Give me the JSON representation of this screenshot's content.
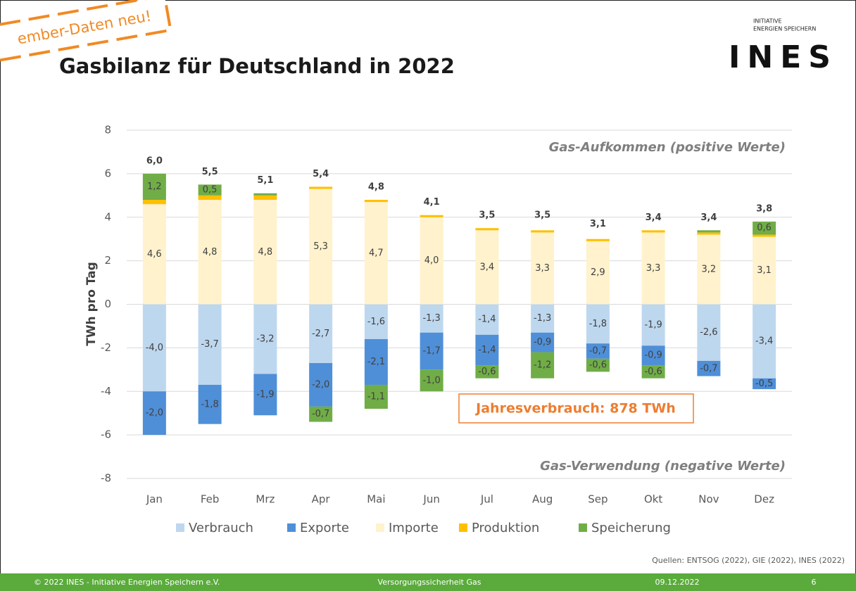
{
  "banner": "ember-Daten neu!",
  "logo": {
    "line1": "INITIATIVE",
    "line2": "ENERGIEN SPEICHERN",
    "name": "INES"
  },
  "chart_data": {
    "type": "bar",
    "stacked": true,
    "title": "Gasbilanz für Deutschland in 2022",
    "y_label": "TWh pro Tag",
    "categories": [
      "Jan",
      "Feb",
      "Mrz",
      "Apr",
      "Mai",
      "Jun",
      "Jul",
      "Aug",
      "Sep",
      "Okt",
      "Nov",
      "Dez"
    ],
    "series": [
      {
        "name": "Verbrauch",
        "color": "#bdd7ee",
        "values": [
          -4.0,
          -3.7,
          -3.2,
          -2.7,
          -1.6,
          -1.3,
          -1.4,
          -1.3,
          -1.8,
          -1.9,
          -2.6,
          -3.4
        ],
        "value_labels": [
          "-4,0",
          "-3,7",
          "-3,2",
          "-2,7",
          "-1,6",
          "-1,3",
          "-1,4",
          "-1,3",
          "-1,8",
          "-1,9",
          "-2,6",
          "-3,4"
        ]
      },
      {
        "name": "Exporte",
        "color": "#4f8fd8",
        "values": [
          -2.0,
          -1.8,
          -1.9,
          -2.0,
          -2.1,
          -1.7,
          -1.4,
          -0.9,
          -0.7,
          -0.9,
          -0.7,
          -0.5
        ],
        "value_labels": [
          "-2,0",
          "-1,8",
          "-1,9",
          "-2,0",
          "-2,1",
          "-1,7",
          "-1,4",
          "-0,9",
          "-0,7",
          "-0,9",
          "-0,7",
          "-0,5"
        ]
      },
      {
        "name": "Importe",
        "color": "#fff2cc",
        "values": [
          4.6,
          4.8,
          4.8,
          5.3,
          4.7,
          4.0,
          3.4,
          3.3,
          2.9,
          3.3,
          3.2,
          3.1
        ],
        "value_labels": [
          "4,6",
          "4,8",
          "4,8",
          "5,3",
          "4,7",
          "4,0",
          "3,4",
          "3,3",
          "2,9",
          "3,3",
          "3,2",
          "3,1"
        ]
      },
      {
        "name": "Produktion",
        "color": "#ffc000",
        "values": [
          0.2,
          0.2,
          0.2,
          0.1,
          0.1,
          0.1,
          0.1,
          0.1,
          0.1,
          0.1,
          0.1,
          0.1
        ]
      },
      {
        "name": "Speicherung",
        "color": "#70ad47",
        "values": [
          1.2,
          0.5,
          0.1,
          -0.7,
          -1.1,
          -1.0,
          -0.6,
          -1.2,
          -0.6,
          -0.6,
          0.1,
          0.6
        ],
        "value_labels": [
          "1,2",
          "0,5",
          null,
          "-0,7",
          "-1,1",
          "-1,0",
          "-0,6",
          "-1,2",
          "-0,6",
          "-0,6",
          null,
          "0,6"
        ]
      }
    ],
    "totals": {
      "values": [
        6.0,
        5.5,
        5.1,
        5.4,
        4.8,
        4.1,
        3.5,
        3.5,
        3.1,
        3.4,
        3.4,
        3.8
      ],
      "value_labels": [
        "6,0",
        "5,5",
        "5,1",
        "5,4",
        "4,8",
        "4,1",
        "3,5",
        "3,5",
        "3,1",
        "3,4",
        "3,4",
        "3,8"
      ]
    },
    "ylim": [
      -8,
      8
    ],
    "yticks": [
      8,
      6,
      4,
      2,
      0,
      -2,
      -4,
      -6,
      -8
    ],
    "grid": true,
    "annotations": {
      "top": "Gas-Aufkommen (positive Werte)",
      "bottom": "Gas-Verwendung (negative Werte)",
      "box": "Jahresverbrauch: 878 TWh"
    }
  },
  "source": "Quellen: ENTSOG (2022), GIE (2022), INES (2022)",
  "footer": {
    "left": "© 2022 INES - Initiative Energien Speichern e.V.",
    "center": "Versorgungssicherheit Gas",
    "date": "09.12.2022",
    "page": "6"
  }
}
